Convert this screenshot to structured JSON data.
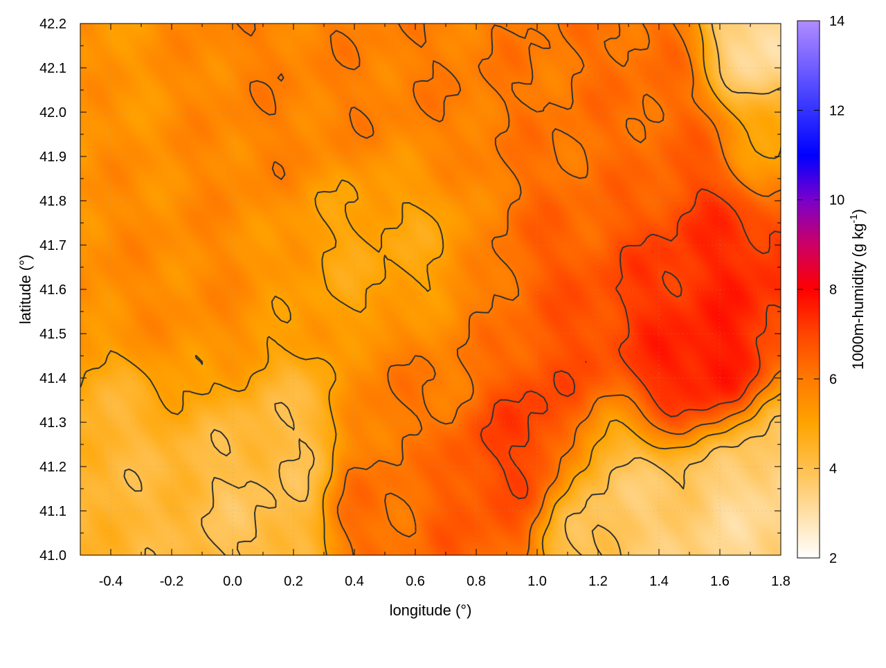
{
  "chart_data": {
    "type": "heatmap",
    "title": "",
    "xlabel": "longitude (°)",
    "ylabel": "latitude (°)",
    "xlim": [
      -0.5,
      1.8
    ],
    "ylim": [
      41.0,
      42.2
    ],
    "xticks": [
      {
        "value": -0.4,
        "label": "-0.4"
      },
      {
        "value": -0.2,
        "label": "-0.2"
      },
      {
        "value": 0.0,
        "label": "0.0"
      },
      {
        "value": 0.2,
        "label": "0.2"
      },
      {
        "value": 0.4,
        "label": "0.4"
      },
      {
        "value": 0.6,
        "label": "0.6"
      },
      {
        "value": 0.8,
        "label": "0.8"
      },
      {
        "value": 1.0,
        "label": "1.0"
      },
      {
        "value": 1.2,
        "label": "1.2"
      },
      {
        "value": 1.4,
        "label": "1.4"
      },
      {
        "value": 1.6,
        "label": "1.6"
      },
      {
        "value": 1.8,
        "label": "1.8"
      }
    ],
    "yticks": [
      {
        "value": 41.0,
        "label": "41.0"
      },
      {
        "value": 41.1,
        "label": "41.1"
      },
      {
        "value": 41.2,
        "label": "41.2"
      },
      {
        "value": 41.3,
        "label": "41.3"
      },
      {
        "value": 41.4,
        "label": "41.4"
      },
      {
        "value": 41.5,
        "label": "41.5"
      },
      {
        "value": 41.6,
        "label": "41.6"
      },
      {
        "value": 41.7,
        "label": "41.7"
      },
      {
        "value": 41.8,
        "label": "41.8"
      },
      {
        "value": 41.9,
        "label": "41.9"
      },
      {
        "value": 42.0,
        "label": "42.0"
      },
      {
        "value": 42.1,
        "label": "42.1"
      },
      {
        "value": 42.2,
        "label": "42.2"
      }
    ],
    "grid": true,
    "colorbar": {
      "label_main": "1000m-humidity (g kg",
      "label_sup": "-1",
      "label_end": ")",
      "range": [
        2,
        14
      ],
      "ticks": [
        {
          "value": 2,
          "label": "2"
        },
        {
          "value": 4,
          "label": "4"
        },
        {
          "value": 6,
          "label": "6"
        },
        {
          "value": 8,
          "label": "8"
        },
        {
          "value": 10,
          "label": "10"
        },
        {
          "value": 12,
          "label": "12"
        },
        {
          "value": 14,
          "label": "14"
        }
      ],
      "colors": [
        {
          "value": 2,
          "color": "#ffffff"
        },
        {
          "value": 4,
          "color": "#ffc04d"
        },
        {
          "value": 5,
          "color": "#ffa400"
        },
        {
          "value": 6,
          "color": "#ff7a00"
        },
        {
          "value": 7,
          "color": "#ff4500"
        },
        {
          "value": 8,
          "color": "#ff0000"
        },
        {
          "value": 9,
          "color": "#cc0066"
        },
        {
          "value": 10,
          "color": "#7a00cc"
        },
        {
          "value": 11,
          "color": "#0000ff"
        },
        {
          "value": 12,
          "color": "#3333ff"
        },
        {
          "value": 14,
          "color": "#b08cff"
        }
      ]
    },
    "field_features": [
      {
        "lon": -0.3,
        "lat": 41.8,
        "value": 5.6,
        "radius": 0.22
      },
      {
        "lon": 0.0,
        "lat": 41.55,
        "value": 5.6,
        "radius": 0.22
      },
      {
        "lon": -0.35,
        "lat": 42.0,
        "value": 5.3,
        "radius": 0.2
      },
      {
        "lon": 0.1,
        "lat": 42.05,
        "value": 5.8,
        "radius": 0.25
      },
      {
        "lon": 0.55,
        "lat": 42.0,
        "value": 5.9,
        "radius": 0.2
      },
      {
        "lon": 0.95,
        "lat": 42.0,
        "value": 6.0,
        "radius": 0.2
      },
      {
        "lon": 1.35,
        "lat": 41.95,
        "value": 6.3,
        "radius": 0.25
      },
      {
        "lon": 1.7,
        "lat": 42.15,
        "value": 2.6,
        "radius": 0.12
      },
      {
        "lon": 1.75,
        "lat": 41.9,
        "value": 4.6,
        "radius": 0.1
      },
      {
        "lon": 0.6,
        "lat": 41.7,
        "value": 4.8,
        "radius": 0.18
      },
      {
        "lon": 0.45,
        "lat": 41.75,
        "value": 4.7,
        "radius": 0.12
      },
      {
        "lon": 0.25,
        "lat": 41.65,
        "value": 4.9,
        "radius": 0.15
      },
      {
        "lon": 0.8,
        "lat": 41.5,
        "value": 6.0,
        "radius": 0.15
      },
      {
        "lon": 1.1,
        "lat": 41.65,
        "value": 6.6,
        "radius": 0.2
      },
      {
        "lon": 1.3,
        "lat": 41.55,
        "value": 7.2,
        "radius": 0.2
      },
      {
        "lon": 1.5,
        "lat": 41.6,
        "value": 7.6,
        "radius": 0.2
      },
      {
        "lon": 1.65,
        "lat": 41.65,
        "value": 7.5,
        "radius": 0.18
      },
      {
        "lon": 1.58,
        "lat": 41.4,
        "value": 8.6,
        "radius": 0.1
      },
      {
        "lon": 1.45,
        "lat": 41.38,
        "value": 8.3,
        "radius": 0.12
      },
      {
        "lon": 1.0,
        "lat": 41.3,
        "value": 7.4,
        "radius": 0.14
      },
      {
        "lon": 0.85,
        "lat": 41.2,
        "value": 7.0,
        "radius": 0.12
      },
      {
        "lon": 0.8,
        "lat": 41.05,
        "value": 6.6,
        "radius": 0.12
      },
      {
        "lon": 0.45,
        "lat": 41.1,
        "value": 6.3,
        "radius": 0.12
      },
      {
        "lon": 0.55,
        "lat": 41.35,
        "value": 6.0,
        "radius": 0.14
      },
      {
        "lon": -0.35,
        "lat": 41.15,
        "value": 4.2,
        "radius": 0.2
      },
      {
        "lon": 0.05,
        "lat": 41.15,
        "value": 3.8,
        "radius": 0.2
      },
      {
        "lon": 0.15,
        "lat": 41.3,
        "value": 4.0,
        "radius": 0.14
      },
      {
        "lon": 1.3,
        "lat": 41.12,
        "value": 3.6,
        "radius": 0.2
      },
      {
        "lon": 1.6,
        "lat": 41.1,
        "value": 3.3,
        "radius": 0.22
      },
      {
        "lon": 1.75,
        "lat": 41.05,
        "value": 3.0,
        "radius": 0.15
      },
      {
        "lon": 1.2,
        "lat": 41.85,
        "value": 6.0,
        "radius": 0.15
      }
    ],
    "field_background": 5.5,
    "contour_levels": [
      4,
      5,
      6,
      7,
      8
    ],
    "contour_color": "#333333"
  }
}
